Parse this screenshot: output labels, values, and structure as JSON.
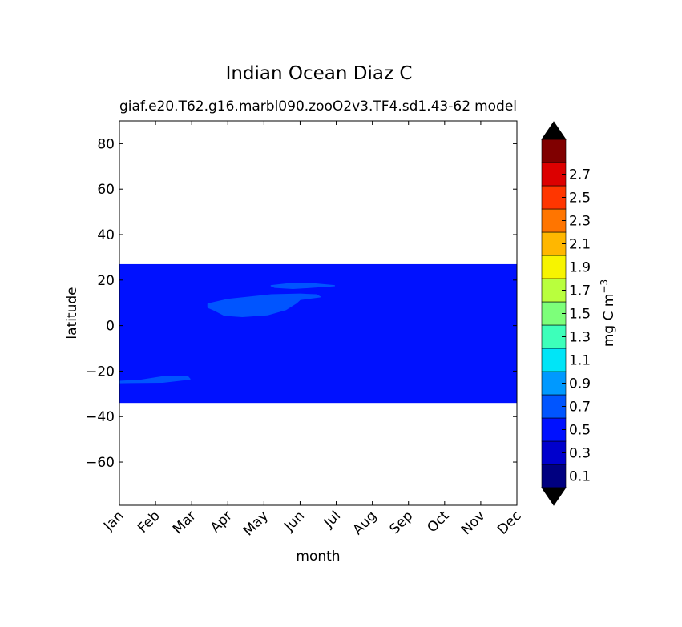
{
  "chart_data": {
    "type": "heatmap",
    "title": "Indian Ocean Diaz C",
    "subtitle_left": "giaf.e20.T62.g16.marbl090.zooO2v3.TF4.sd1.43-62",
    "subtitle_right": "model",
    "xlabel": "month",
    "ylabel": "latitude",
    "colorbar_label": "mg C m",
    "colorbar_label_exponent": "−3",
    "x_categories": [
      "Jan",
      "Feb",
      "Mar",
      "Apr",
      "May",
      "Jun",
      "Jul",
      "Aug",
      "Sep",
      "Oct",
      "Nov",
      "Dec"
    ],
    "xlim": [
      0,
      11
    ],
    "ylim": [
      -79,
      90
    ],
    "yticks": [
      {
        "value": 80,
        "label": "80"
      },
      {
        "value": 60,
        "label": "60"
      },
      {
        "value": 40,
        "label": "40"
      },
      {
        "value": 20,
        "label": "20"
      },
      {
        "value": 0,
        "label": "0"
      },
      {
        "value": -20,
        "label": "−20"
      },
      {
        "value": -40,
        "label": "−40"
      },
      {
        "value": -60,
        "label": "−60"
      }
    ],
    "levels": [
      0.0,
      0.2,
      0.4,
      0.6,
      0.8,
      1.0,
      1.2,
      1.4,
      1.6,
      1.8,
      2.0,
      2.2,
      2.4,
      2.6,
      2.8,
      3.0
    ],
    "level_colors": [
      "#000080",
      "#0000cd",
      "#0011ff",
      "#0055ff",
      "#0099ff",
      "#00e5f7",
      "#3dffba",
      "#7dff7a",
      "#b9ff3d",
      "#f7f400",
      "#ffb700",
      "#ff7500",
      "#ff3600",
      "#dc0000",
      "#800000"
    ],
    "extend_colors": {
      "under": "#000000",
      "over": "#000000"
    },
    "colorbar_ticks": [
      {
        "value": 0.1,
        "label": "0.1"
      },
      {
        "value": 0.3,
        "label": "0.3"
      },
      {
        "value": 0.5,
        "label": "0.5"
      },
      {
        "value": 0.7,
        "label": "0.7"
      },
      {
        "value": 0.9,
        "label": "0.9"
      },
      {
        "value": 1.1,
        "label": "1.1"
      },
      {
        "value": 1.3,
        "label": "1.3"
      },
      {
        "value": 1.5,
        "label": "1.5"
      },
      {
        "value": 1.7,
        "label": "1.7"
      },
      {
        "value": 1.9,
        "label": "1.9"
      },
      {
        "value": 2.1,
        "label": "2.1"
      },
      {
        "value": 2.3,
        "label": "2.3"
      },
      {
        "value": 2.5,
        "label": "2.5"
      },
      {
        "value": 2.7,
        "label": "2.7"
      }
    ],
    "data_extent": {
      "lat_min": -34,
      "lat_max": 27,
      "month_min": 0,
      "month_max": 11
    },
    "background_level": {
      "range": [
        0.4,
        0.6
      ],
      "color": "#0011ff"
    },
    "regions": [
      {
        "name": "patch-feb",
        "range": [
          0.6,
          0.8
        ],
        "color": "#0055ff",
        "outline": [
          [
            0.0,
            -24.5
          ],
          [
            0.6,
            -24.0
          ],
          [
            1.2,
            -22.5
          ],
          [
            1.9,
            -22.6
          ],
          [
            1.95,
            -23.5
          ],
          [
            1.2,
            -24.9
          ],
          [
            0.3,
            -25.0
          ],
          [
            0.0,
            -25.1
          ]
        ]
      },
      {
        "name": "patch-apr-jun",
        "range": [
          0.6,
          0.8
        ],
        "color": "#0055ff",
        "outline": [
          [
            2.45,
            9.5
          ],
          [
            3.0,
            11.5
          ],
          [
            4.2,
            13.5
          ],
          [
            5.0,
            13.8
          ],
          [
            5.45,
            13.5
          ],
          [
            5.55,
            12.6
          ],
          [
            5.0,
            11.5
          ],
          [
            4.9,
            10.0
          ],
          [
            4.6,
            7.0
          ],
          [
            4.1,
            4.8
          ],
          [
            3.4,
            4.0
          ],
          [
            2.9,
            4.6
          ],
          [
            2.6,
            7.0
          ],
          [
            2.45,
            8.0
          ]
        ]
      },
      {
        "name": "patch-jun",
        "range": [
          0.6,
          0.8
        ],
        "color": "#0055ff",
        "outline": [
          [
            4.2,
            17.5
          ],
          [
            4.7,
            18.4
          ],
          [
            5.4,
            18.3
          ],
          [
            5.95,
            17.5
          ],
          [
            5.5,
            17.0
          ],
          [
            4.8,
            16.3
          ],
          [
            4.3,
            16.8
          ]
        ]
      }
    ]
  }
}
